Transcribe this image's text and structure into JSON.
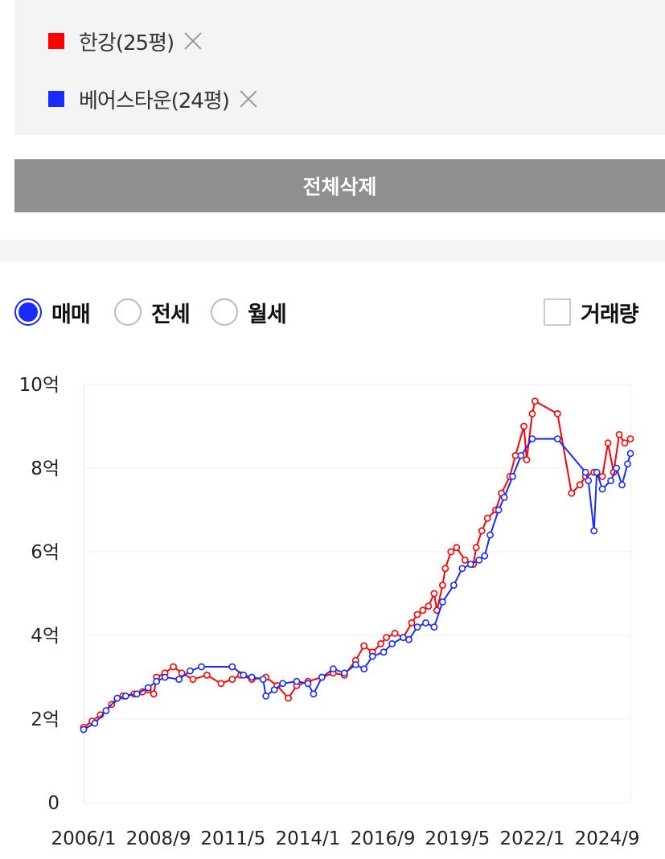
{
  "compare": {
    "items": [
      {
        "label": "한강(25평)",
        "color": "#ff0000"
      },
      {
        "label": "베어스타운(24평)",
        "color": "#1a2bff"
      }
    ],
    "delete_all_label": "전체삭제"
  },
  "filters": {
    "options": [
      {
        "label": "매매",
        "checked": true
      },
      {
        "label": "전세",
        "checked": false
      },
      {
        "label": "월세",
        "checked": false
      }
    ],
    "volume_label": "거래량",
    "volume_checked": false
  },
  "chart_data": {
    "type": "line",
    "y_ticks": [
      {
        "value": 0,
        "label": "0"
      },
      {
        "value": 2,
        "label": "2억"
      },
      {
        "value": 4,
        "label": "4억"
      },
      {
        "value": 6,
        "label": "6억"
      },
      {
        "value": 8,
        "label": "8억"
      },
      {
        "value": 10,
        "label": "10억"
      }
    ],
    "x_ticks": [
      {
        "value": 2006.0,
        "label": "2006/1"
      },
      {
        "value": 2008.67,
        "label": "2008/9"
      },
      {
        "value": 2011.33,
        "label": "2011/5"
      },
      {
        "value": 2014.0,
        "label": "2014/1"
      },
      {
        "value": 2016.67,
        "label": "2016/9"
      },
      {
        "value": 2019.33,
        "label": "2019/5"
      },
      {
        "value": 2022.0,
        "label": "2022/1"
      },
      {
        "value": 2024.67,
        "label": "2024/9"
      }
    ],
    "xlim": [
      2006.0,
      2025.5
    ],
    "ylim": [
      0,
      10
    ],
    "grid": true,
    "series": [
      {
        "name": "한강(25평)",
        "color": "#ff0000",
        "points": [
          [
            2006.0,
            1.8
          ],
          [
            2006.3,
            1.95
          ],
          [
            2006.6,
            2.1
          ],
          [
            2007.0,
            2.35
          ],
          [
            2007.4,
            2.55
          ],
          [
            2007.8,
            2.6
          ],
          [
            2008.1,
            2.65
          ],
          [
            2008.3,
            2.7
          ],
          [
            2008.5,
            2.6
          ],
          [
            2008.6,
            3.0
          ],
          [
            2008.9,
            3.1
          ],
          [
            2009.2,
            3.25
          ],
          [
            2009.5,
            3.1
          ],
          [
            2009.9,
            2.95
          ],
          [
            2010.4,
            3.05
          ],
          [
            2010.9,
            2.85
          ],
          [
            2011.3,
            2.95
          ],
          [
            2011.6,
            3.05
          ],
          [
            2012.0,
            2.95
          ],
          [
            2012.5,
            3.0
          ],
          [
            2012.9,
            2.8
          ],
          [
            2013.3,
            2.5
          ],
          [
            2013.6,
            2.8
          ],
          [
            2014.0,
            2.9
          ],
          [
            2014.5,
            3.0
          ],
          [
            2014.9,
            3.1
          ],
          [
            2015.3,
            3.05
          ],
          [
            2015.7,
            3.4
          ],
          [
            2016.0,
            3.75
          ],
          [
            2016.3,
            3.6
          ],
          [
            2016.6,
            3.8
          ],
          [
            2016.8,
            3.95
          ],
          [
            2017.1,
            4.05
          ],
          [
            2017.4,
            3.95
          ],
          [
            2017.7,
            4.3
          ],
          [
            2017.9,
            4.5
          ],
          [
            2018.1,
            4.6
          ],
          [
            2018.3,
            4.7
          ],
          [
            2018.5,
            5.0
          ],
          [
            2018.6,
            4.6
          ],
          [
            2018.8,
            5.2
          ],
          [
            2018.9,
            5.6
          ],
          [
            2019.1,
            6.0
          ],
          [
            2019.3,
            6.1
          ],
          [
            2019.6,
            5.8
          ],
          [
            2019.9,
            5.7
          ],
          [
            2020.0,
            6.1
          ],
          [
            2020.2,
            6.5
          ],
          [
            2020.4,
            6.8
          ],
          [
            2020.7,
            7.0
          ],
          [
            2020.9,
            7.4
          ],
          [
            2021.2,
            7.8
          ],
          [
            2021.4,
            8.3
          ],
          [
            2021.7,
            9.0
          ],
          [
            2021.8,
            8.2
          ],
          [
            2022.0,
            9.3
          ],
          [
            2022.1,
            9.6
          ],
          [
            2022.9,
            9.3
          ],
          [
            2023.4,
            7.4
          ],
          [
            2023.7,
            7.6
          ],
          [
            2023.9,
            7.8
          ],
          [
            2024.2,
            7.9
          ],
          [
            2024.5,
            7.8
          ],
          [
            2024.7,
            8.6
          ],
          [
            2024.9,
            7.9
          ],
          [
            2025.1,
            8.8
          ],
          [
            2025.3,
            8.6
          ],
          [
            2025.5,
            8.7
          ]
        ]
      },
      {
        "name": "베어스타운(24평)",
        "color": "#1a2bff",
        "points": [
          [
            2006.0,
            1.75
          ],
          [
            2006.4,
            1.9
          ],
          [
            2006.8,
            2.2
          ],
          [
            2007.2,
            2.5
          ],
          [
            2007.5,
            2.55
          ],
          [
            2007.9,
            2.6
          ],
          [
            2008.3,
            2.75
          ],
          [
            2008.6,
            2.9
          ],
          [
            2008.9,
            3.0
          ],
          [
            2009.4,
            2.95
          ],
          [
            2009.8,
            3.15
          ],
          [
            2010.2,
            3.25
          ],
          [
            2011.3,
            3.25
          ],
          [
            2011.7,
            3.05
          ],
          [
            2012.0,
            3.0
          ],
          [
            2012.4,
            2.95
          ],
          [
            2012.5,
            2.55
          ],
          [
            2012.8,
            2.7
          ],
          [
            2013.1,
            2.85
          ],
          [
            2013.6,
            2.9
          ],
          [
            2014.0,
            2.85
          ],
          [
            2014.2,
            2.6
          ],
          [
            2014.5,
            3.0
          ],
          [
            2014.9,
            3.2
          ],
          [
            2015.3,
            3.1
          ],
          [
            2015.7,
            3.3
          ],
          [
            2016.0,
            3.2
          ],
          [
            2016.3,
            3.5
          ],
          [
            2016.7,
            3.6
          ],
          [
            2017.0,
            3.8
          ],
          [
            2017.4,
            3.95
          ],
          [
            2017.6,
            3.9
          ],
          [
            2017.9,
            4.2
          ],
          [
            2018.2,
            4.3
          ],
          [
            2018.5,
            4.2
          ],
          [
            2018.8,
            4.8
          ],
          [
            2019.2,
            5.2
          ],
          [
            2019.5,
            5.6
          ],
          [
            2019.8,
            5.7
          ],
          [
            2020.1,
            5.8
          ],
          [
            2020.3,
            5.9
          ],
          [
            2020.5,
            6.4
          ],
          [
            2020.8,
            7.0
          ],
          [
            2021.0,
            7.3
          ],
          [
            2021.3,
            7.8
          ],
          [
            2021.6,
            8.3
          ],
          [
            2022.0,
            8.7
          ],
          [
            2022.9,
            8.7
          ],
          [
            2023.9,
            7.9
          ],
          [
            2024.0,
            7.7
          ],
          [
            2024.2,
            6.5
          ],
          [
            2024.3,
            7.9
          ],
          [
            2024.5,
            7.5
          ],
          [
            2024.8,
            7.7
          ],
          [
            2025.0,
            8.0
          ],
          [
            2025.2,
            7.6
          ],
          [
            2025.4,
            8.1
          ],
          [
            2025.5,
            8.35
          ]
        ]
      }
    ]
  }
}
